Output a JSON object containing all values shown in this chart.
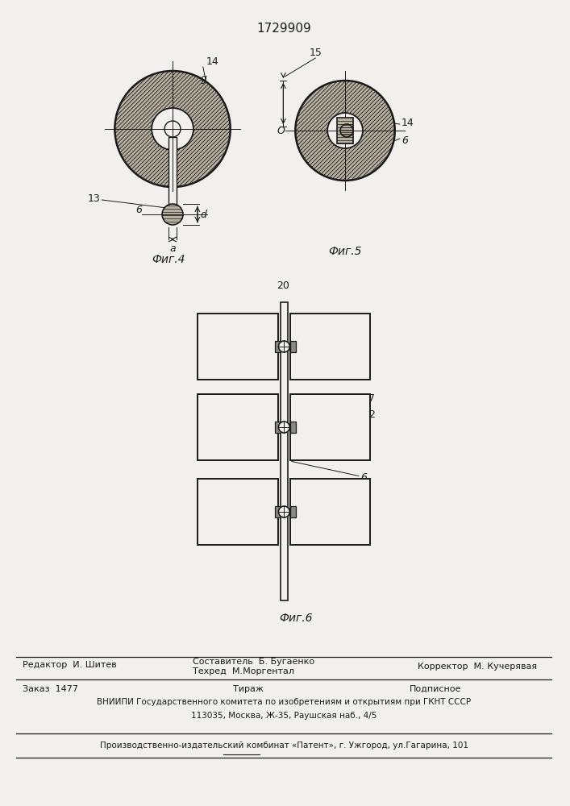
{
  "title": "1729909",
  "fig4_label": "Фиг.4",
  "fig5_label": "Фиг.5",
  "fig6_label": "Фиг.6",
  "num_20": "20",
  "bg_color": "#f2f0ec",
  "line_color": "#1a1a1a",
  "footer_editor": "Редактор  И. Шитев",
  "footer_comp1": "Составитель  Б. Бугаенко",
  "footer_tech": "Техред  М.Моргентал",
  "footer_corr": "Корректор  М. Кучерявая",
  "footer_order": "Заказ  1477",
  "footer_tirazh": "Тираж",
  "footer_podp": "Подписное",
  "footer_vniip": "ВНИИПИ Государственного комитета по изобретениям и открытиям при ГКНТ СССР",
  "footer_addr": "113035, Москва, Ж-35, Раушская наб., 4/5",
  "footer_patent": "Производственно-издательский комбинат «Патент», г. Ужгород, ул.Гагарина, 101"
}
